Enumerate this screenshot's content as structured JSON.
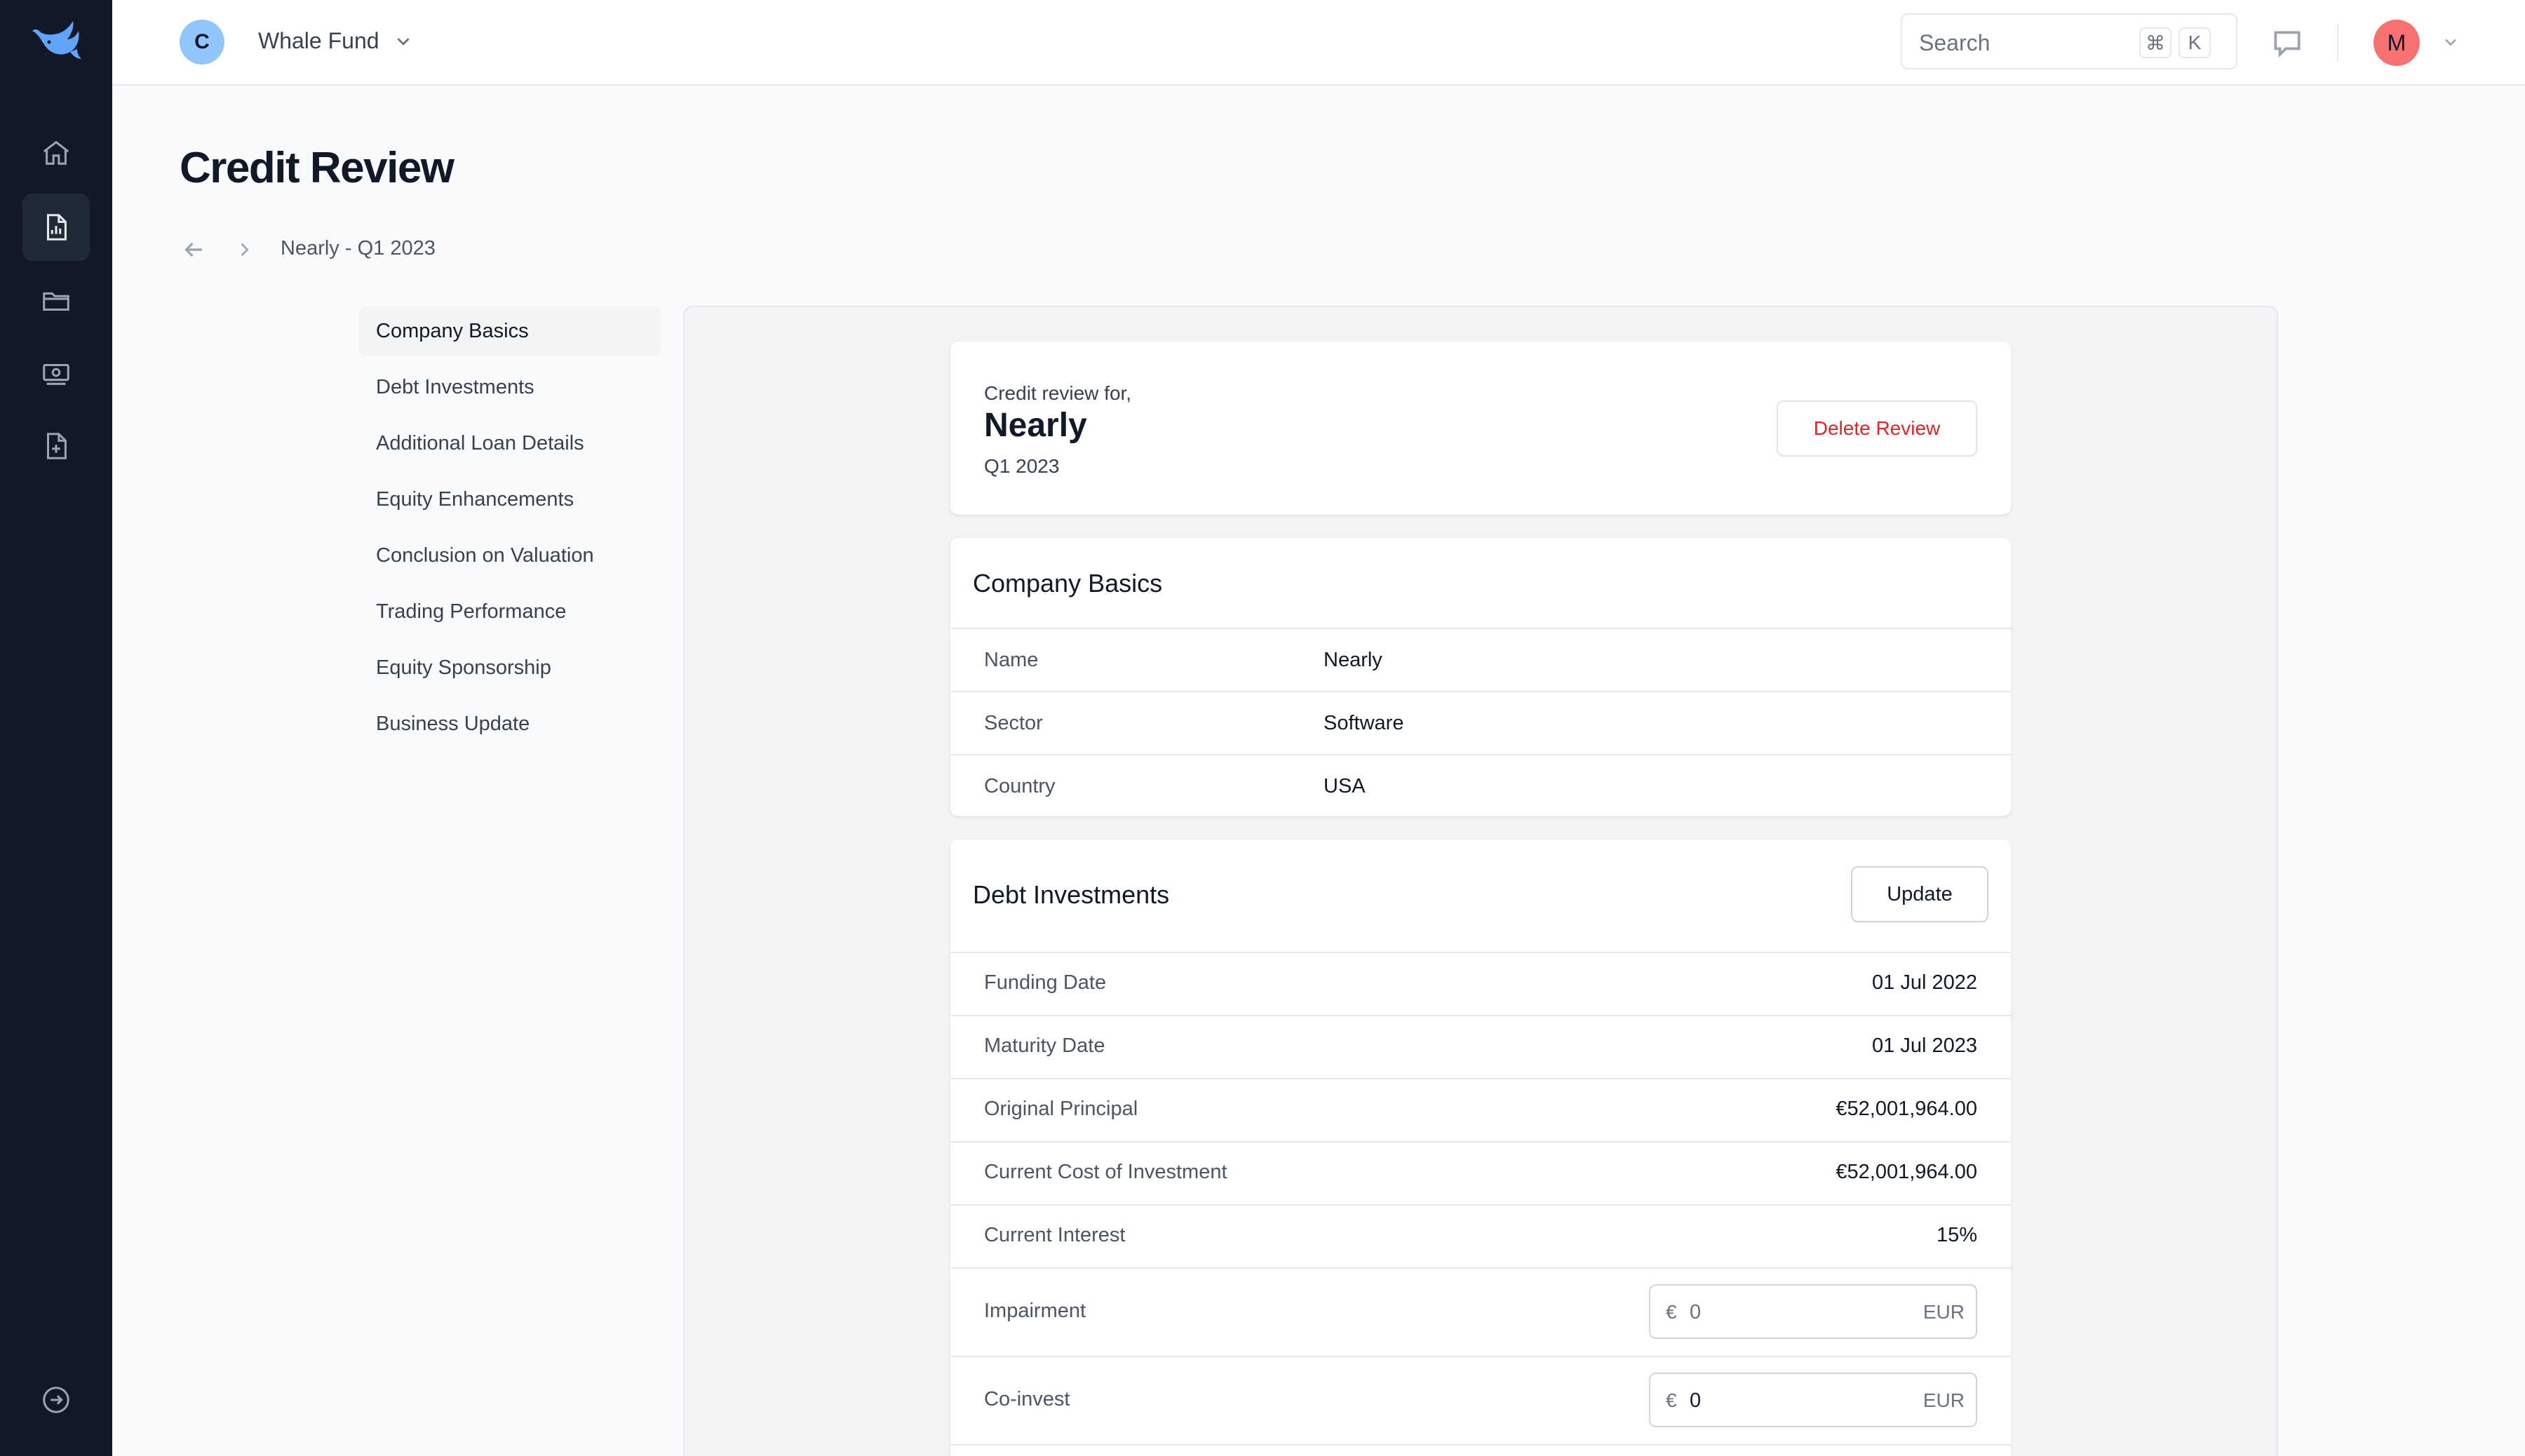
{
  "rail": {
    "icons": [
      "whale-logo",
      "home-icon",
      "report-icon",
      "folder-icon",
      "cash-icon",
      "document-plus-icon",
      "logout-icon"
    ]
  },
  "topbar": {
    "org_initial": "C",
    "org_name": "Whale Fund",
    "search_placeholder": "Search",
    "shortcut_cmd": "⌘",
    "shortcut_key": "K",
    "user_initial": "M"
  },
  "page": {
    "title": "Credit Review",
    "breadcrumb": "Nearly - Q1 2023"
  },
  "section_nav": [
    {
      "label": "Company Basics",
      "active": true
    },
    {
      "label": "Debt Investments"
    },
    {
      "label": "Additional Loan Details"
    },
    {
      "label": "Equity Enhancements"
    },
    {
      "label": "Conclusion on Valuation"
    },
    {
      "label": "Trading Performance"
    },
    {
      "label": "Equity Sponsorship"
    },
    {
      "label": "Business Update"
    }
  ],
  "review_header": {
    "lead": "Credit review for,",
    "company": "Nearly",
    "period": "Q1 2023",
    "delete_label": "Delete Review"
  },
  "company_basics": {
    "title": "Company Basics",
    "rows": [
      {
        "label": "Name",
        "value": "Nearly"
      },
      {
        "label": "Sector",
        "value": "Software"
      },
      {
        "label": "Country",
        "value": "USA"
      }
    ]
  },
  "debt_investments": {
    "title": "Debt Investments",
    "update_label": "Update",
    "rows": [
      {
        "label": "Funding Date",
        "value": "01 Jul 2022"
      },
      {
        "label": "Maturity Date",
        "value": "01 Jul 2023"
      },
      {
        "label": "Original Principal",
        "value": "€52,001,964.00"
      },
      {
        "label": "Current Cost of Investment",
        "value": "€52,001,964.00"
      },
      {
        "label": "Current Interest",
        "value": "15%"
      }
    ],
    "inputs": [
      {
        "label": "Impairment",
        "currency_symbol": "€",
        "placeholder": "0",
        "currency_code": "EUR"
      },
      {
        "label": "Co-invest",
        "currency_symbol": "€",
        "value": "0",
        "currency_code": "EUR"
      }
    ]
  }
}
